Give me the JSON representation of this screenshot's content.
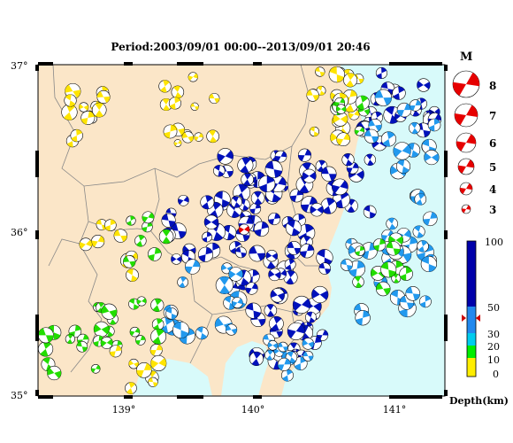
{
  "title": "Period:2003/09/01 00:00--2013/09/01 20:46",
  "lat_labels": [
    "37°",
    "36°",
    "35°"
  ],
  "lon_labels": [
    "139°",
    "140°",
    "141°"
  ],
  "colors": {
    "land": "#fbe6c8",
    "sea": "#d8fafa",
    "border": "#777777",
    "mechanism_red": "#e60000"
  },
  "magnitude_legend": {
    "header": "M",
    "items": [
      "8",
      "7",
      "6",
      "5",
      "4",
      "3"
    ]
  },
  "depth_scale": {
    "title": "Depth(km)",
    "labels": [
      "100",
      "50",
      "30",
      "20",
      "10",
      "0"
    ],
    "colors": [
      "#0000cc",
      "#0066ff",
      "#33aaee",
      "#00c8c8",
      "#00ee00",
      "#ffee00"
    ]
  },
  "depth_palette": {
    "shallow": "#ffe400",
    "10-20": "#22dd00",
    "20-30": "#00c8c8",
    "30-50": "#2299ee",
    "deep": "#0011bb"
  }
}
